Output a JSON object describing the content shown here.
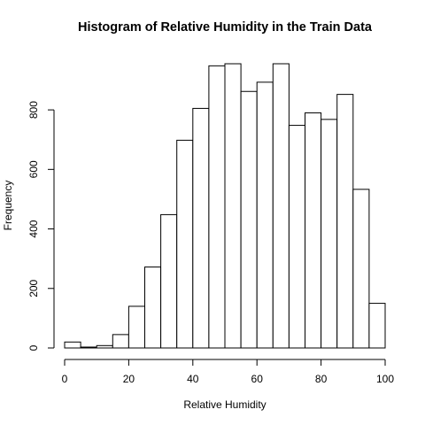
{
  "chart_data": {
    "type": "bar",
    "title": "Histogram of Relative Humidity in the Train Data",
    "xlabel": "Relative Humidity",
    "ylabel": "Frequency",
    "bin_edges": [
      0,
      5,
      10,
      15,
      20,
      25,
      30,
      35,
      40,
      45,
      50,
      55,
      60,
      65,
      70,
      75,
      80,
      85,
      90,
      95,
      100
    ],
    "values": [
      20,
      3,
      8,
      45,
      140,
      272,
      448,
      698,
      805,
      948,
      955,
      862,
      893,
      955,
      748,
      790,
      768,
      852,
      533,
      150
    ],
    "xlim": [
      0,
      100
    ],
    "ylim": [
      0,
      955
    ],
    "x_ticks": [
      0,
      20,
      40,
      60,
      80,
      100
    ],
    "y_ticks": [
      0,
      200,
      400,
      600,
      800
    ],
    "grid": false,
    "legend": "none",
    "colors": {
      "bar_fill": "#ffffff",
      "bar_stroke": "#000000"
    }
  }
}
